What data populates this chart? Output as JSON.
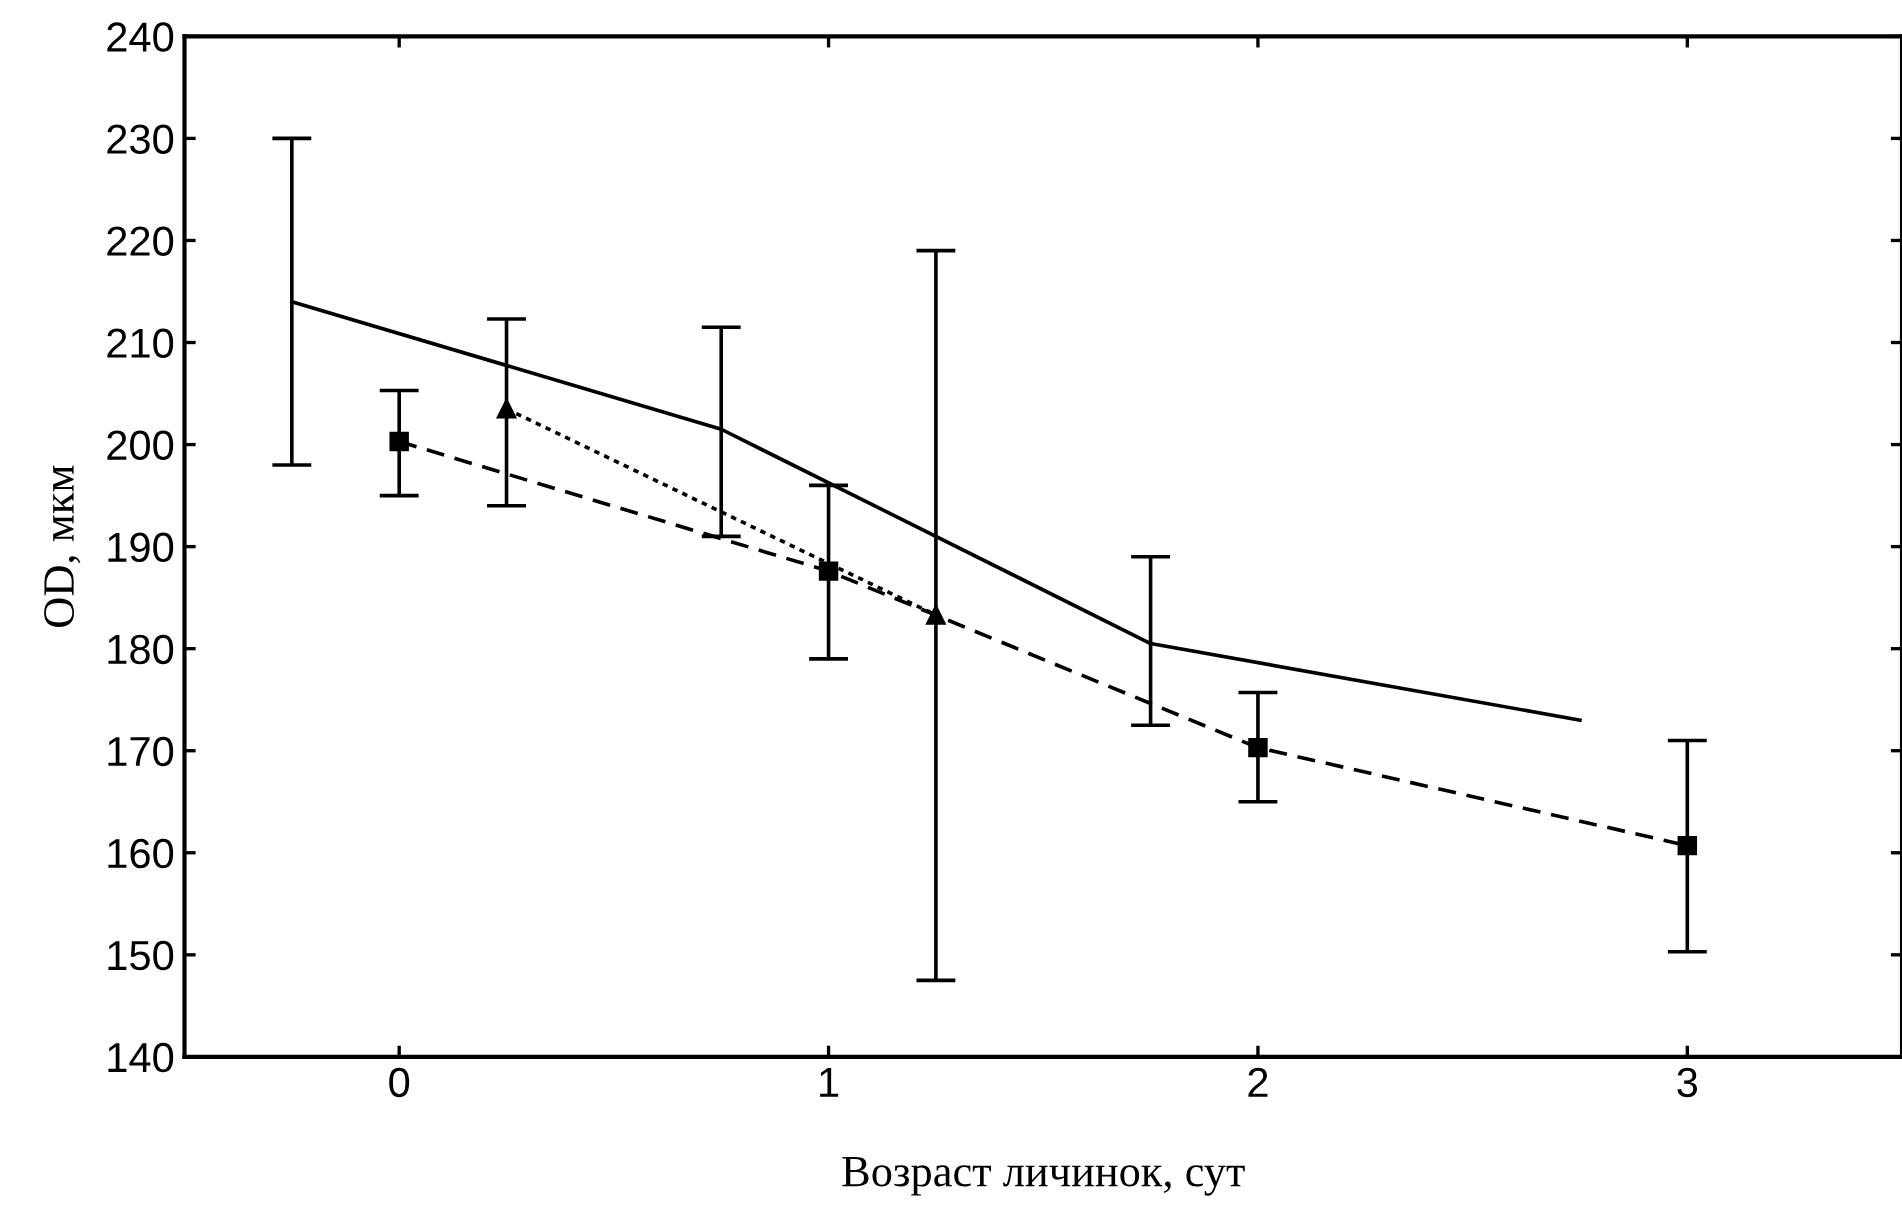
{
  "chart_data": {
    "type": "line",
    "xlabel": "Возраст личинок, сут",
    "ylabel": "OD, мкм",
    "xlim": [
      -0.5,
      3.5
    ],
    "xticks": [
      0,
      1,
      2,
      3
    ],
    "ylim": [
      140,
      240
    ],
    "yticks": [
      140,
      150,
      160,
      170,
      180,
      190,
      200,
      210,
      220,
      230,
      240
    ],
    "grid": false,
    "legend": false,
    "series": [
      {
        "color": "#000000",
        "line_style": "solid",
        "marker": "none",
        "x": [
          -0.25,
          0.75,
          1.75,
          2.75
        ],
        "values": [
          214,
          201.5,
          180.5,
          173
        ],
        "errors": [
          [
            198,
            230
          ],
          [
            191,
            211.5
          ],
          [
            172.5,
            189
          ],
          null
        ]
      },
      {
        "color": "#000000",
        "line_style": "dashed",
        "marker": "square",
        "x": [
          0,
          1,
          2,
          3
        ],
        "values": [
          200.3,
          187.6,
          170.3,
          160.7
        ],
        "errors": [
          [
            195,
            205.3
          ],
          [
            179,
            196
          ],
          [
            165,
            175.7
          ],
          [
            150.3,
            171
          ]
        ]
      },
      {
        "color": "#000000",
        "line_style": "dotted",
        "marker": "triangle",
        "x": [
          0.25,
          1.25
        ],
        "values": [
          203.5,
          183.3
        ],
        "errors": [
          [
            194,
            212.3
          ],
          [
            147.5,
            219
          ]
        ]
      }
    ]
  }
}
